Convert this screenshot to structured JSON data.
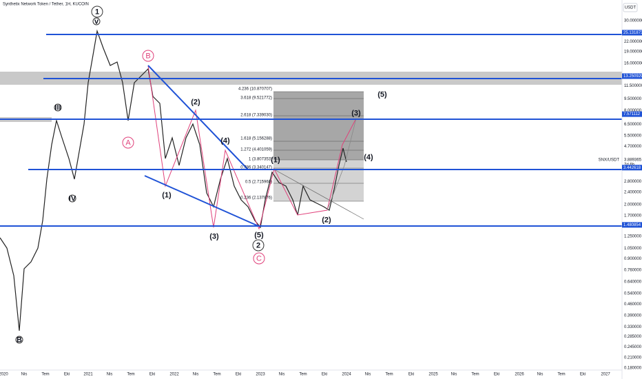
{
  "header": {
    "title": "Synthetix Network Token / Tether, 1H, KUCOIN",
    "currency": "USDT"
  },
  "price_axis": [
    "30.000000",
    "22.000000",
    "19.000000",
    "16.000000",
    "11.500000",
    "9.500000",
    "8.000000",
    "6.500000",
    "5.500000",
    "4.700000",
    "2.800000",
    "2.400000",
    "2.000000",
    "1.700000",
    "1.250000",
    "1.050000",
    "0.900000",
    "0.760000",
    "0.640000",
    "0.540000",
    "0.460000",
    "0.390000",
    "0.330000",
    "0.285000",
    "0.245000",
    "0.210000",
    "0.180000"
  ],
  "price_tags": [
    "25.131873",
    "13.250929",
    "7.571112",
    "3.442618",
    "1.480854"
  ],
  "current": {
    "symbol": "SNX/USDT",
    "price": "3.889365",
    "countdown": "7d 6h"
  },
  "time_axis": [
    "2020",
    "Nis",
    "Tem",
    "Eki",
    "2021",
    "Nis",
    "Tem",
    "Eki",
    "2022",
    "Nis",
    "Tem",
    "Eki",
    "2023",
    "Nis",
    "Tem",
    "Eki",
    "2024",
    "Nis",
    "Tem",
    "Eki",
    "2025",
    "Nis",
    "Tem",
    "Eki",
    "2026",
    "Nis",
    "Tem",
    "Eki",
    "2027"
  ],
  "fib_levels": [
    "4.236 (10.870707)",
    "3.618 (9.521772)",
    "2.618 (7.339030)",
    "1.618 (5.156288)",
    "1.272 (4.401059)",
    "1 (3.807353)",
    "0.786 (3.340147)",
    "0.5 (2.715960)",
    "0.236 (2.137876)"
  ],
  "waves": [
    "1",
    "v",
    "B",
    "A",
    "III",
    "IV",
    "B",
    "(1)",
    "(2)",
    "(3)",
    "(4)",
    "(5)",
    "2",
    "C",
    "(1)",
    "(2)",
    "(3)",
    "(4)",
    "(5)"
  ]
}
